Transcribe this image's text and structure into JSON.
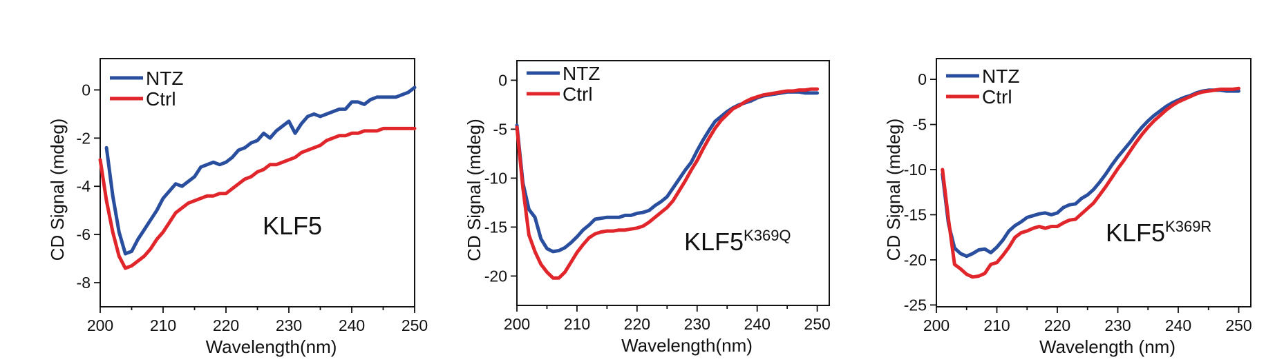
{
  "chart_data": [
    {
      "type": "line",
      "label": "KLF5",
      "label_sup": "",
      "xlabel": "Wavelength(nm)",
      "ylabel": "CD Signal (mdeg)",
      "xlim": [
        200,
        250
      ],
      "ylim": [
        -9,
        1.3
      ],
      "xticks": [
        200,
        210,
        220,
        230,
        240,
        250
      ],
      "yticks": [
        0,
        -2,
        -4,
        -6,
        -8
      ],
      "legend": "top-left",
      "series": [
        {
          "name": "NTZ",
          "color": "#2a4e9e",
          "x": [
            201,
            202,
            203,
            204,
            205,
            206,
            207,
            208,
            209,
            210,
            211,
            212,
            213,
            214,
            215,
            216,
            217,
            218,
            219,
            220,
            221,
            222,
            223,
            224,
            225,
            226,
            227,
            228,
            229,
            230,
            231,
            232,
            233,
            234,
            235,
            236,
            237,
            238,
            239,
            240,
            241,
            242,
            243,
            244,
            245,
            246,
            247,
            248,
            249,
            250
          ],
          "y": [
            -2.4,
            -4.4,
            -5.9,
            -6.8,
            -6.7,
            -6.2,
            -5.8,
            -5.4,
            -5.0,
            -4.5,
            -4.2,
            -3.9,
            -4.0,
            -3.8,
            -3.6,
            -3.2,
            -3.1,
            -3.0,
            -3.1,
            -3.0,
            -2.8,
            -2.5,
            -2.4,
            -2.2,
            -2.1,
            -1.8,
            -2.0,
            -1.7,
            -1.5,
            -1.3,
            -1.8,
            -1.4,
            -1.1,
            -1.0,
            -1.1,
            -1.0,
            -0.9,
            -0.8,
            -0.8,
            -0.5,
            -0.5,
            -0.6,
            -0.4,
            -0.3,
            -0.3,
            -0.3,
            -0.3,
            -0.2,
            -0.1,
            0.1
          ]
        },
        {
          "name": "Ctrl",
          "color": "#e0262b",
          "x": [
            200,
            201,
            202,
            203,
            204,
            205,
            206,
            207,
            208,
            209,
            210,
            211,
            212,
            213,
            214,
            215,
            216,
            217,
            218,
            219,
            220,
            221,
            222,
            223,
            224,
            225,
            226,
            227,
            228,
            229,
            230,
            231,
            232,
            233,
            234,
            235,
            236,
            237,
            238,
            239,
            240,
            241,
            242,
            243,
            244,
            245,
            246,
            247,
            248,
            249,
            250
          ],
          "y": [
            -2.9,
            -4.6,
            -5.9,
            -6.9,
            -7.4,
            -7.3,
            -7.1,
            -6.9,
            -6.6,
            -6.2,
            -5.9,
            -5.5,
            -5.1,
            -4.9,
            -4.7,
            -4.6,
            -4.5,
            -4.4,
            -4.4,
            -4.3,
            -4.3,
            -4.1,
            -3.9,
            -3.7,
            -3.6,
            -3.4,
            -3.3,
            -3.1,
            -3.1,
            -3.0,
            -2.9,
            -2.8,
            -2.6,
            -2.5,
            -2.4,
            -2.3,
            -2.1,
            -2.0,
            -1.9,
            -1.9,
            -1.8,
            -1.8,
            -1.7,
            -1.7,
            -1.7,
            -1.6,
            -1.6,
            -1.6,
            -1.6,
            -1.6,
            -1.6
          ]
        }
      ]
    },
    {
      "type": "line",
      "label": "KLF5",
      "label_sup": "K369Q",
      "xlabel": "Wavelength(nm)",
      "ylabel": "CD Signal (mdeg)",
      "xlim": [
        200,
        252
      ],
      "ylim": [
        -23,
        2
      ],
      "xticks": [
        200,
        210,
        220,
        230,
        240,
        250
      ],
      "yticks": [
        0,
        -5,
        -10,
        -15,
        -20
      ],
      "legend": "top-left",
      "series": [
        {
          "name": "NTZ",
          "color": "#2a4e9e",
          "x": [
            200,
            201,
            202,
            203,
            204,
            205,
            206,
            207,
            208,
            209,
            210,
            211,
            212,
            213,
            214,
            215,
            216,
            217,
            218,
            219,
            220,
            221,
            222,
            223,
            224,
            225,
            226,
            227,
            228,
            229,
            230,
            231,
            232,
            233,
            234,
            235,
            236,
            237,
            238,
            239,
            240,
            241,
            242,
            243,
            244,
            245,
            246,
            247,
            248,
            249,
            250
          ],
          "y": [
            -4.6,
            -10.5,
            -13.2,
            -14.0,
            -16.2,
            -17.2,
            -17.5,
            -17.4,
            -17.1,
            -16.6,
            -16.0,
            -15.3,
            -14.8,
            -14.2,
            -14.1,
            -14.0,
            -14.0,
            -14.0,
            -13.8,
            -13.8,
            -13.6,
            -13.5,
            -13.3,
            -12.8,
            -12.4,
            -11.9,
            -11.0,
            -10.1,
            -9.2,
            -8.4,
            -7.2,
            -6.1,
            -5.1,
            -4.2,
            -3.7,
            -3.2,
            -2.8,
            -2.5,
            -2.3,
            -2.1,
            -1.8,
            -1.6,
            -1.5,
            -1.4,
            -1.3,
            -1.2,
            -1.2,
            -1.2,
            -1.3,
            -1.3,
            -1.3
          ]
        },
        {
          "name": "Ctrl",
          "color": "#e0262b",
          "x": [
            200,
            201,
            202,
            203,
            204,
            205,
            206,
            207,
            208,
            209,
            210,
            211,
            212,
            213,
            214,
            215,
            216,
            217,
            218,
            219,
            220,
            221,
            222,
            223,
            224,
            225,
            226,
            227,
            228,
            229,
            230,
            231,
            232,
            233,
            234,
            235,
            236,
            237,
            238,
            239,
            240,
            241,
            242,
            243,
            244,
            245,
            246,
            247,
            248,
            249,
            250
          ],
          "y": [
            -4.8,
            -11.0,
            -15.8,
            -17.5,
            -18.8,
            -19.6,
            -20.2,
            -20.2,
            -19.6,
            -18.6,
            -17.6,
            -16.8,
            -16.1,
            -15.7,
            -15.5,
            -15.4,
            -15.4,
            -15.3,
            -15.3,
            -15.2,
            -15.1,
            -14.9,
            -14.5,
            -14.0,
            -13.5,
            -13.0,
            -12.3,
            -11.3,
            -10.3,
            -9.2,
            -8.2,
            -7.0,
            -5.9,
            -4.9,
            -4.1,
            -3.5,
            -2.9,
            -2.6,
            -2.2,
            -1.9,
            -1.7,
            -1.5,
            -1.4,
            -1.3,
            -1.2,
            -1.1,
            -1.1,
            -1.0,
            -1.0,
            -0.9,
            -0.9
          ]
        }
      ]
    },
    {
      "type": "line",
      "label": "KLF5",
      "label_sup": "K369R",
      "xlabel": "Wavelength (nm)",
      "ylabel": "CD Signal (mdeg)",
      "xlim": [
        200,
        252
      ],
      "ylim": [
        -25.2,
        2.3
      ],
      "xticks": [
        200,
        210,
        220,
        230,
        240,
        250
      ],
      "yticks": [
        0,
        -5,
        -10,
        -15,
        -20,
        -25
      ],
      "legend": "top-left",
      "series": [
        {
          "name": "NTZ",
          "color": "#2a4e9e",
          "x": [
            201,
            202,
            203,
            204,
            205,
            206,
            207,
            208,
            209,
            210,
            211,
            212,
            213,
            214,
            215,
            216,
            217,
            218,
            219,
            220,
            221,
            222,
            223,
            224,
            225,
            226,
            227,
            228,
            229,
            230,
            231,
            232,
            233,
            234,
            235,
            236,
            237,
            238,
            239,
            240,
            241,
            242,
            243,
            244,
            245,
            246,
            247,
            248,
            249,
            250
          ],
          "y": [
            -10.5,
            -16.0,
            -18.7,
            -19.3,
            -19.6,
            -19.3,
            -18.9,
            -18.8,
            -19.2,
            -18.6,
            -17.8,
            -16.8,
            -16.2,
            -15.8,
            -15.3,
            -15.1,
            -14.9,
            -14.8,
            -15.0,
            -14.8,
            -14.2,
            -13.9,
            -13.8,
            -13.2,
            -12.8,
            -12.2,
            -11.4,
            -10.5,
            -9.5,
            -8.6,
            -7.8,
            -7.0,
            -6.1,
            -5.3,
            -4.6,
            -4.0,
            -3.5,
            -3.0,
            -2.6,
            -2.3,
            -2.0,
            -1.8,
            -1.5,
            -1.3,
            -1.2,
            -1.2,
            -1.2,
            -1.3,
            -1.3,
            -1.3
          ]
        },
        {
          "name": "Ctrl",
          "color": "#e0262b",
          "x": [
            201,
            202,
            203,
            204,
            205,
            206,
            207,
            208,
            209,
            210,
            211,
            212,
            213,
            214,
            215,
            216,
            217,
            218,
            219,
            220,
            221,
            222,
            223,
            224,
            225,
            226,
            227,
            228,
            229,
            230,
            231,
            232,
            233,
            234,
            235,
            236,
            237,
            238,
            239,
            240,
            241,
            242,
            243,
            244,
            245,
            246,
            247,
            248,
            249,
            250
          ],
          "y": [
            -10.0,
            -15.5,
            -20.5,
            -21.0,
            -21.6,
            -21.9,
            -21.8,
            -21.5,
            -20.5,
            -20.3,
            -19.5,
            -18.6,
            -17.5,
            -17.0,
            -16.8,
            -16.5,
            -16.3,
            -16.5,
            -16.3,
            -16.3,
            -15.9,
            -15.6,
            -15.5,
            -14.9,
            -14.3,
            -13.7,
            -12.8,
            -11.9,
            -10.9,
            -9.9,
            -9.0,
            -8.0,
            -7.0,
            -6.1,
            -5.3,
            -4.6,
            -4.0,
            -3.4,
            -2.9,
            -2.5,
            -2.2,
            -1.9,
            -1.6,
            -1.4,
            -1.3,
            -1.2,
            -1.1,
            -1.1,
            -1.1,
            -1.0
          ]
        }
      ]
    }
  ]
}
